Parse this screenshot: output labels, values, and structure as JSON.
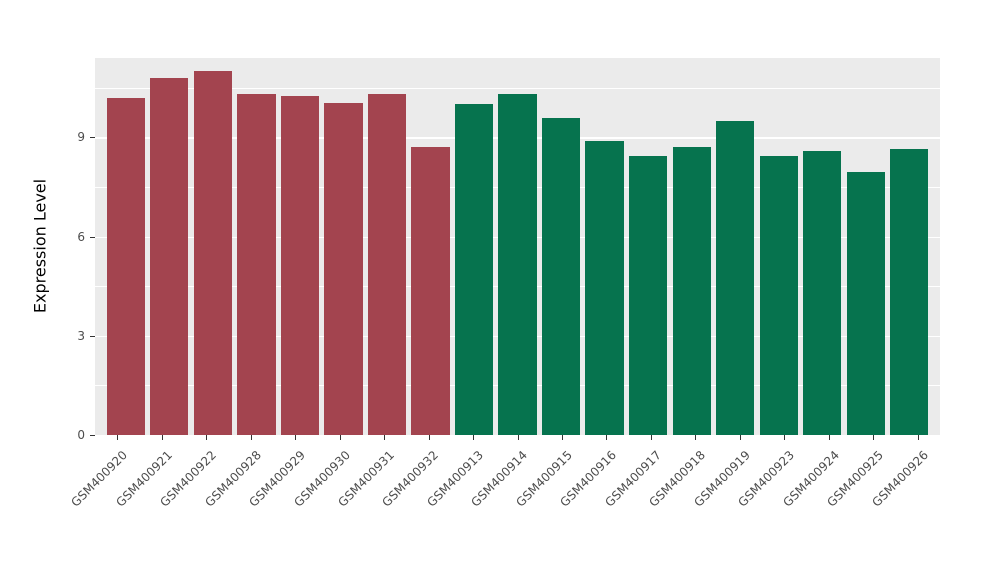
{
  "figure": {
    "background": "#FFFFFF",
    "panel_background": "#EBEBEB",
    "gridline_color": "#FFFFFF",
    "axis_text_color": "#4D4D4D",
    "tick_mark_color": "#333333"
  },
  "chart_data": {
    "type": "bar",
    "title": "",
    "xlabel": "",
    "ylabel": "Expression Level",
    "categories": [
      "GSM400920",
      "GSM400921",
      "GSM400922",
      "GSM400928",
      "GSM400929",
      "GSM400930",
      "GSM400931",
      "GSM400932",
      "GSM400913",
      "GSM400914",
      "GSM400915",
      "GSM400916",
      "GSM400917",
      "GSM400918",
      "GSM400919",
      "GSM400923",
      "GSM400924",
      "GSM400925",
      "GSM400926"
    ],
    "values": [
      10.2,
      10.8,
      11.0,
      10.3,
      10.25,
      10.05,
      10.3,
      8.7,
      10.0,
      10.3,
      9.6,
      8.9,
      8.45,
      8.7,
      9.5,
      8.45,
      8.6,
      7.95,
      8.65
    ],
    "group": [
      "group1",
      "group1",
      "group1",
      "group1",
      "group1",
      "group1",
      "group1",
      "group1",
      "group2",
      "group2",
      "group2",
      "group2",
      "group2",
      "group2",
      "group2",
      "group2",
      "group2",
      "group2",
      "group2"
    ],
    "group_colors": {
      "group1": "#A3444F",
      "group2": "#06734E"
    },
    "yticks": [
      0,
      3,
      6,
      9
    ],
    "ytick_labels": [
      "0",
      "3",
      "6",
      "9"
    ],
    "minor_ticks": [
      1.5,
      4.5,
      7.5,
      10.5
    ],
    "ylim": [
      0,
      11.4
    ],
    "grid": true,
    "legend_position": "none",
    "x_label_rotation_deg": 45
  }
}
